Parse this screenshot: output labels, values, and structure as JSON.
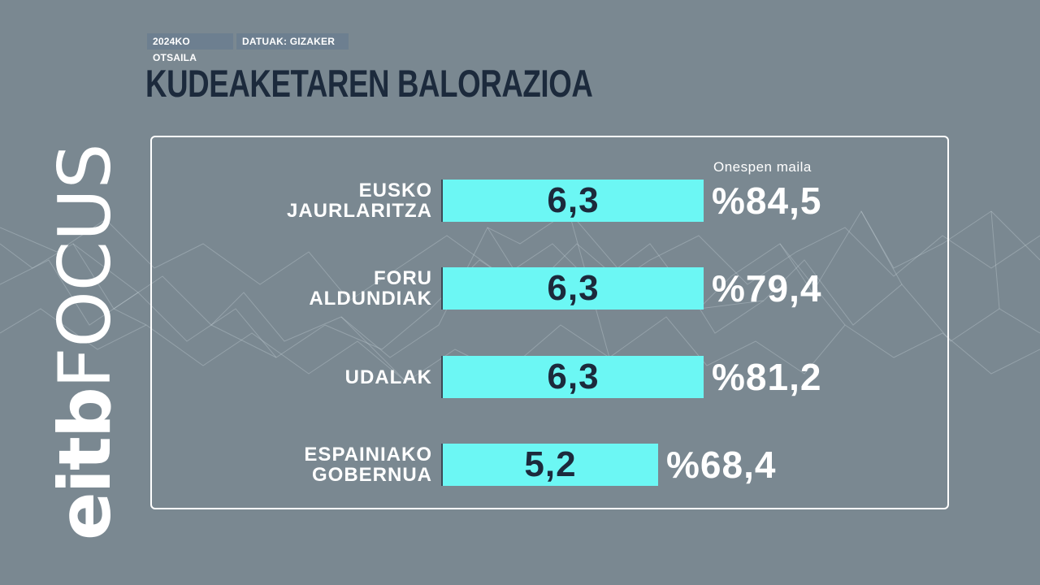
{
  "header": {
    "date_tag": "2024KO OTSAILA",
    "source_tag": "DATUAK: GIZAKER",
    "title": "KUDEAKETAREN BALORAZIOA"
  },
  "logo": {
    "part1": "eitb",
    "part2": "FOCUS"
  },
  "colors": {
    "background": "#7a8891",
    "bar": "#6cf7f4",
    "title": "#1c2a3c",
    "tag": "#6d7f90"
  },
  "chart_data": {
    "type": "bar",
    "orientation": "horizontal",
    "value_column_header": "Onespen maila",
    "rows": [
      {
        "label_lines": [
          "EUSKO",
          "JAURLARITZA"
        ],
        "value": 6.3,
        "value_label": "6,3",
        "approval": "%84,5"
      },
      {
        "label_lines": [
          "FORU",
          "ALDUNDIAK"
        ],
        "value": 6.3,
        "value_label": "6,3",
        "approval": "%79,4"
      },
      {
        "label_lines": [
          "UDALAK"
        ],
        "value": 6.3,
        "value_label": "6,3",
        "approval": "%81,2"
      },
      {
        "label_lines": [
          "ESPAINIAKO",
          "GOBERNUA"
        ],
        "value": 5.2,
        "value_label": "5,2",
        "approval": "%68,4"
      }
    ],
    "xlim": [
      0,
      6.3
    ]
  }
}
